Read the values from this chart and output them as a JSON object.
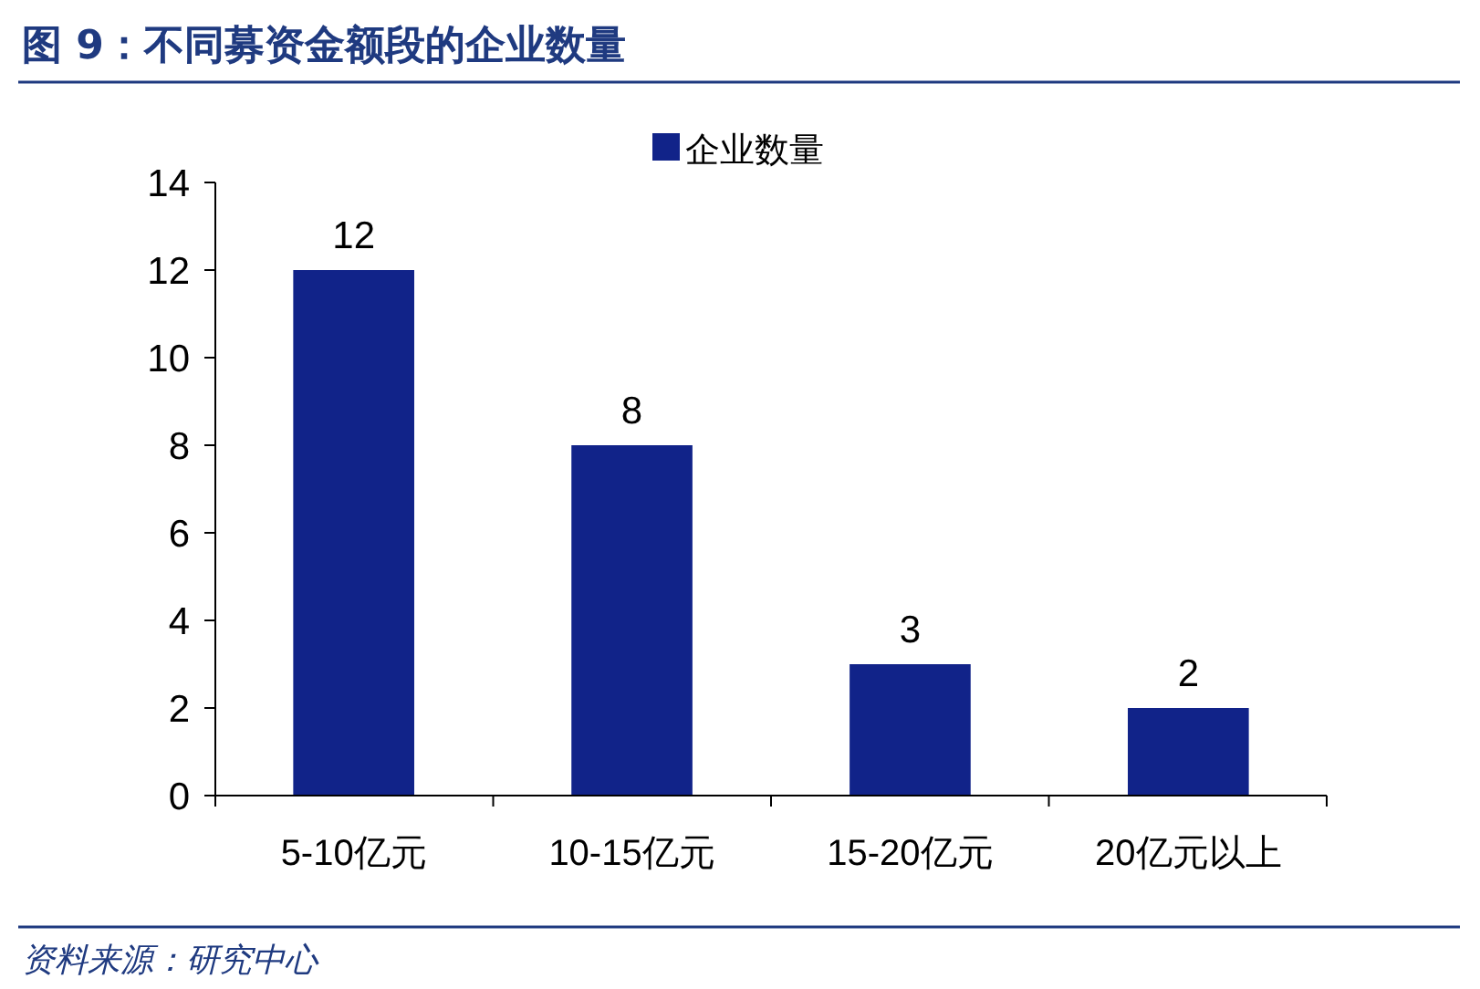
{
  "chart_data": {
    "type": "bar",
    "title": "图 9：不同募资金额段的企业数量",
    "categories": [
      "5-10亿元",
      "10-15亿元",
      "15-20亿元",
      "20亿元以上"
    ],
    "series": [
      {
        "name": "企业数量",
        "color": "#112389",
        "values": [
          12,
          8,
          3,
          2
        ]
      }
    ],
    "ylim": [
      0,
      14
    ],
    "yticks": [
      0,
      2,
      4,
      6,
      8,
      10,
      12,
      14
    ],
    "grid": false,
    "legend": "top",
    "data_labels": true,
    "annotations": [
      "资料来源：研究中心"
    ]
  }
}
